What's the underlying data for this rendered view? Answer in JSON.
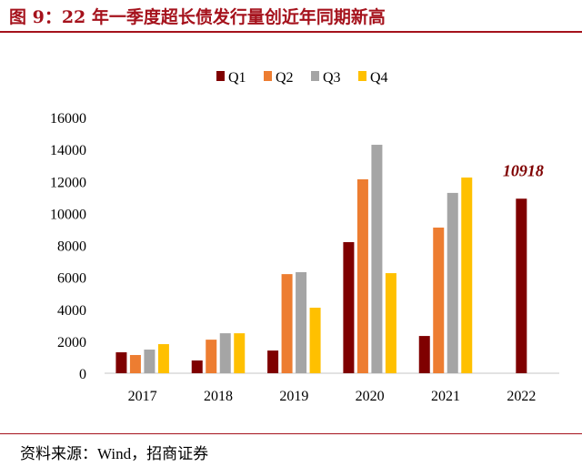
{
  "title": "图 9：22 年一季度超长债发行量创近年同期新高",
  "source": "资料来源：Wind，招商证券",
  "chart_data": {
    "type": "bar",
    "title": "图 9：22 年一季度超长债发行量创近年同期新高",
    "xlabel": "",
    "ylabel": "",
    "ylim": [
      0,
      16000
    ],
    "yticks": [
      0,
      2000,
      4000,
      6000,
      8000,
      10000,
      12000,
      14000,
      16000
    ],
    "categories": [
      "2017",
      "2018",
      "2019",
      "2020",
      "2021",
      "2022"
    ],
    "legend_position": "top",
    "grid": false,
    "series": [
      {
        "name": "Q1",
        "color": "#7f0000",
        "values": [
          1310,
          800,
          1420,
          8200,
          2330,
          10918
        ]
      },
      {
        "name": "Q2",
        "color": "#ed7d31",
        "values": [
          1140,
          2100,
          6200,
          12130,
          9110,
          null
        ]
      },
      {
        "name": "Q3",
        "color": "#a5a5a5",
        "values": [
          1480,
          2500,
          6320,
          14290,
          11280,
          null
        ]
      },
      {
        "name": "Q4",
        "color": "#ffc000",
        "values": [
          1820,
          2500,
          4100,
          6260,
          12240,
          null
        ]
      }
    ],
    "annotations": [
      {
        "text": "10918",
        "category": "2022",
        "series": "Q1"
      }
    ]
  }
}
